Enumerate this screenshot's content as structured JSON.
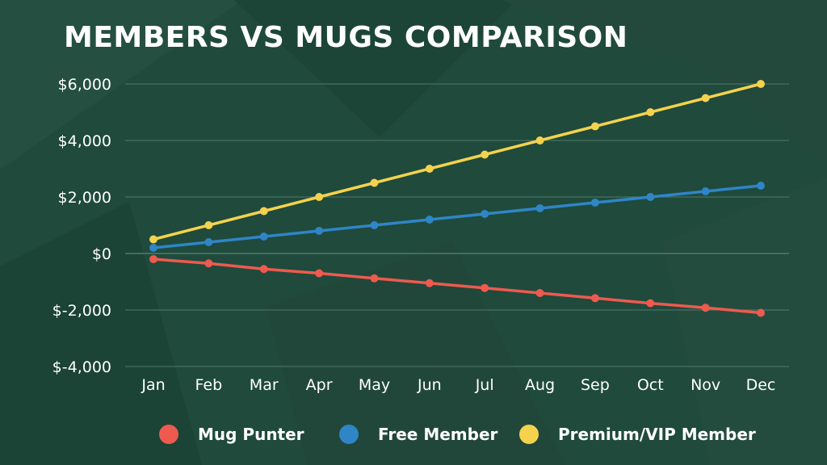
{
  "title": "MEMBERS VS MUGS COMPARISON",
  "colors": {
    "background": "#1f4a3c",
    "grid": "#4f7a6b",
    "text": "#ffffff"
  },
  "chart_data": {
    "type": "line",
    "categories": [
      "Jan",
      "Feb",
      "Mar",
      "Apr",
      "May",
      "Jun",
      "Jul",
      "Aug",
      "Sep",
      "Oct",
      "Nov",
      "Dec"
    ],
    "ylim": [
      -4000,
      6000
    ],
    "yticks": [
      6000,
      4000,
      2000,
      0,
      -2000,
      -4000
    ],
    "ytick_labels": [
      "$6,000",
      "$4,000",
      "$2,000",
      "$0",
      "$-2,000",
      "$-4,000"
    ],
    "grid": true,
    "legend_position": "bottom",
    "series": [
      {
        "name": "Mug Punter",
        "color": "#ee5a4f",
        "values": [
          -200,
          -350,
          -550,
          -700,
          -880,
          -1050,
          -1220,
          -1400,
          -1580,
          -1760,
          -1920,
          -2100
        ]
      },
      {
        "name": "Free Member",
        "color": "#2f85c6",
        "values": [
          200,
          400,
          600,
          800,
          1000,
          1200,
          1400,
          1600,
          1800,
          2000,
          2200,
          2400
        ]
      },
      {
        "name": "Premium/VIP Member",
        "color": "#f4d24d",
        "values": [
          500,
          1000,
          1500,
          2000,
          2500,
          3000,
          3500,
          4000,
          4500,
          5000,
          5500,
          6000
        ]
      }
    ]
  }
}
